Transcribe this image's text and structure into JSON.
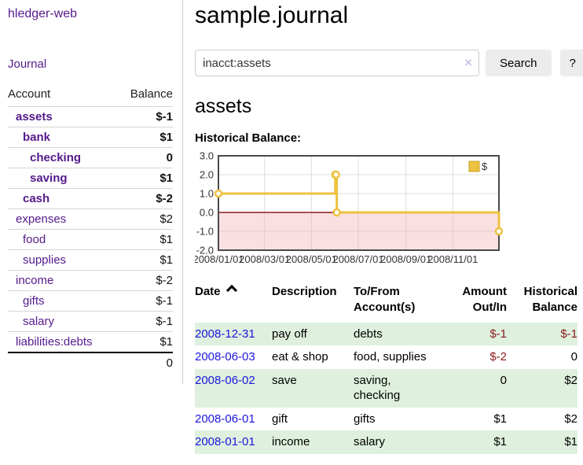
{
  "app": {
    "brand": "hledger-web"
  },
  "colors": {
    "link_purple": "#551a8b",
    "link_blue": "#1a16dd",
    "negative_red": "#8b1a1a",
    "negative_light_red": "#c98585",
    "row_green": "#dff0de",
    "series_gold": "#edc240"
  },
  "sidebar": {
    "journal_label": "Journal",
    "accounts_table": {
      "headers": [
        "Account",
        "Balance"
      ],
      "rows": [
        {
          "account": "assets",
          "balance": "$-1",
          "account_class": "lvl0 bold",
          "balance_class": "bold neg"
        },
        {
          "account": "bank",
          "balance": "$1",
          "account_class": "lvl1 bold",
          "balance_class": "bold"
        },
        {
          "account": "checking",
          "balance": "0",
          "account_class": "lvl2 bold",
          "balance_class": "bold"
        },
        {
          "account": "saving",
          "balance": "$1",
          "account_class": "lvl2 bold",
          "balance_class": "bold"
        },
        {
          "account": "cash",
          "balance": "$-2",
          "account_class": "lvl1 bold",
          "balance_class": "bold neg"
        },
        {
          "account": "expenses",
          "balance": "$2",
          "account_class": "lvl0",
          "balance_class": ""
        },
        {
          "account": "food",
          "balance": "$1",
          "account_class": "lvl1",
          "balance_class": ""
        },
        {
          "account": "supplies",
          "balance": "$1",
          "account_class": "lvl1",
          "balance_class": ""
        },
        {
          "account": "income",
          "balance": "$-2",
          "account_class": "lvl0",
          "balance_class": "neg-light"
        },
        {
          "account": "gifts",
          "balance": "$-1",
          "account_class": "lvl1",
          "balance_class": "neg-light"
        },
        {
          "account": "salary",
          "balance": "$-1",
          "account_class": "lvl1 blue-link",
          "balance_class": "neg-light"
        },
        {
          "account": "liabilities:debts",
          "balance": "$1",
          "account_class": "lvl0",
          "balance_class": ""
        }
      ],
      "total": "0"
    }
  },
  "main": {
    "title": "sample.journal",
    "search": {
      "value": "inacct:assets",
      "clear_icon": "×",
      "button_label": "Search",
      "help_label": "?"
    },
    "account_heading": "assets",
    "chart_label": "Historical Balance:",
    "register_table": {
      "headers": {
        "date": "Date",
        "description": "Description",
        "accounts": "To/From Account(s)",
        "amount": "Amount Out/In",
        "balance": "Historical Balance"
      },
      "rows": [
        {
          "date": "2008-12-31",
          "description": "pay off",
          "accounts": "debts",
          "amount": "$-1",
          "amount_class": "neg",
          "balance": "$-1",
          "balance_class": "neg",
          "row_class": "green"
        },
        {
          "date": "2008-06-03",
          "description": "eat & shop",
          "accounts": "food, supplies",
          "amount": "$-2",
          "amount_class": "neg",
          "balance": "0",
          "balance_class": "",
          "row_class": ""
        },
        {
          "date": "2008-06-02",
          "description": "save",
          "accounts": "saving, checking",
          "amount": "0",
          "amount_class": "",
          "balance": "$2",
          "balance_class": "",
          "row_class": "green"
        },
        {
          "date": "2008-06-01",
          "description": "gift",
          "accounts": "gifts",
          "amount": "$1",
          "amount_class": "",
          "balance": "$2",
          "balance_class": "",
          "row_class": ""
        },
        {
          "date": "2008-01-01",
          "description": "income",
          "accounts": "salary",
          "amount": "$1",
          "amount_class": "",
          "balance": "$1",
          "balance_class": "",
          "row_class": "green"
        }
      ]
    }
  },
  "chart_data": {
    "type": "line",
    "title": "Historical Balance",
    "step": true,
    "series": [
      {
        "name": "$",
        "color": "#edc240",
        "x": [
          "2008-01-01",
          "2008-06-01",
          "2008-06-02",
          "2008-06-03",
          "2008-12-31"
        ],
        "y": [
          1,
          2,
          2,
          0,
          -1
        ]
      }
    ],
    "xrange": [
      "2008-01-01",
      "2008-12-31"
    ],
    "ylim": [
      -2,
      3
    ],
    "yticks": [
      "3.0",
      "2.0",
      "1.0",
      "0.0",
      "-1.0",
      "-2.0"
    ],
    "xticks": [
      {
        "date": "2008-01-01",
        "label": "2008/01/01"
      },
      {
        "date": "2008-03-01",
        "label": "2008/03/01"
      },
      {
        "date": "2008-05-01",
        "label": "2008/05/01"
      },
      {
        "date": "2008-07-01",
        "label": "2008/07/01"
      },
      {
        "date": "2008-09-01",
        "label": "2008/09/01"
      },
      {
        "date": "2008-11-01",
        "label": "2008/11/01"
      }
    ],
    "grid": true,
    "legend": {
      "position": "top-right"
    },
    "border_color": "#4a4a4a",
    "grid_color": "#dcdcdc",
    "negative_region_color": "#f4b4b4",
    "zero_line_color": "#8e1a1a"
  }
}
